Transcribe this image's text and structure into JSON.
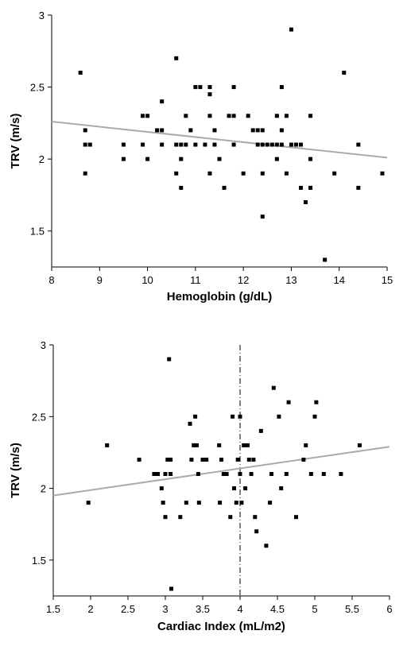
{
  "chart_data": [
    {
      "type": "scatter",
      "xlabel": "Hemoglobin (g/dL)",
      "ylabel": "TRV (m/s)",
      "xlim": [
        8,
        15
      ],
      "ylim": [
        1.25,
        3
      ],
      "xticks": [
        8,
        9,
        10,
        11,
        12,
        13,
        14,
        15
      ],
      "yticks": [
        1.5,
        2,
        2.5,
        3
      ],
      "marker_color": "#000000",
      "trend_line": {
        "color": "#aaaaaa",
        "points": [
          [
            8,
            2.26
          ],
          [
            15,
            2.01
          ]
        ]
      },
      "points": [
        [
          8.6,
          2.6
        ],
        [
          8.7,
          2.2
        ],
        [
          8.7,
          2.1
        ],
        [
          8.7,
          1.9
        ],
        [
          8.8,
          2.1
        ],
        [
          9.5,
          2.1
        ],
        [
          9.5,
          2.0
        ],
        [
          9.9,
          2.3
        ],
        [
          9.9,
          2.1
        ],
        [
          10.0,
          2.3
        ],
        [
          10.0,
          2.0
        ],
        [
          10.2,
          2.2
        ],
        [
          10.3,
          2.2
        ],
        [
          10.3,
          2.4
        ],
        [
          10.3,
          2.1
        ],
        [
          10.6,
          2.7
        ],
        [
          10.6,
          2.1
        ],
        [
          10.6,
          1.9
        ],
        [
          10.7,
          2.0
        ],
        [
          10.7,
          1.8
        ],
        [
          10.7,
          2.1
        ],
        [
          10.8,
          2.3
        ],
        [
          10.8,
          2.1
        ],
        [
          10.9,
          2.2
        ],
        [
          11.0,
          2.5
        ],
        [
          11.0,
          2.1
        ],
        [
          11.1,
          2.5
        ],
        [
          11.2,
          2.1
        ],
        [
          11.3,
          2.5
        ],
        [
          11.3,
          2.45
        ],
        [
          11.3,
          2.3
        ],
        [
          11.3,
          1.9
        ],
        [
          11.4,
          2.2
        ],
        [
          11.4,
          2.1
        ],
        [
          11.5,
          2.0
        ],
        [
          11.6,
          1.8
        ],
        [
          11.7,
          2.3
        ],
        [
          11.8,
          2.5
        ],
        [
          11.8,
          2.3
        ],
        [
          11.8,
          2.1
        ],
        [
          12.0,
          1.9
        ],
        [
          12.1,
          2.3
        ],
        [
          12.2,
          2.2
        ],
        [
          12.3,
          2.2
        ],
        [
          12.3,
          2.1
        ],
        [
          12.4,
          2.1
        ],
        [
          12.4,
          2.2
        ],
        [
          12.4,
          1.9
        ],
        [
          12.4,
          1.6
        ],
        [
          12.5,
          2.1
        ],
        [
          12.6,
          2.1
        ],
        [
          12.7,
          2.1
        ],
        [
          12.7,
          2.0
        ],
        [
          12.7,
          2.3
        ],
        [
          12.8,
          2.5
        ],
        [
          12.8,
          2.2
        ],
        [
          12.8,
          2.1
        ],
        [
          12.9,
          1.9
        ],
        [
          12.9,
          2.3
        ],
        [
          13.0,
          2.9
        ],
        [
          13.0,
          2.1
        ],
        [
          13.1,
          2.1
        ],
        [
          13.2,
          2.1
        ],
        [
          13.2,
          1.8
        ],
        [
          13.3,
          1.7
        ],
        [
          13.4,
          2.3
        ],
        [
          13.4,
          2.0
        ],
        [
          13.4,
          1.8
        ],
        [
          13.7,
          1.3
        ],
        [
          13.9,
          1.9
        ],
        [
          14.1,
          2.6
        ],
        [
          14.4,
          2.1
        ],
        [
          14.4,
          1.8
        ],
        [
          14.9,
          1.9
        ]
      ]
    },
    {
      "type": "scatter",
      "xlabel": "Cardiac Index (mL/m2)",
      "ylabel": "TRV (m/s)",
      "xlim": [
        1.5,
        6
      ],
      "ylim": [
        1.25,
        3
      ],
      "xticks": [
        1.5,
        2,
        2.5,
        3,
        3.5,
        4,
        4.5,
        5,
        5.5,
        6
      ],
      "yticks": [
        1.5,
        2,
        2.5,
        3
      ],
      "marker_color": "#000000",
      "trend_line": {
        "color": "#aaaaaa",
        "points": [
          [
            1.5,
            1.95
          ],
          [
            6,
            2.29
          ]
        ]
      },
      "reference_line": {
        "x": 4,
        "color": "#000000",
        "style": "dash-dot"
      },
      "points": [
        [
          1.97,
          1.9
        ],
        [
          2.22,
          2.3
        ],
        [
          2.65,
          2.2
        ],
        [
          2.85,
          2.1
        ],
        [
          2.9,
          2.1
        ],
        [
          2.95,
          2.0
        ],
        [
          2.97,
          1.9
        ],
        [
          3.0,
          1.8
        ],
        [
          3.0,
          2.1
        ],
        [
          3.03,
          2.2
        ],
        [
          3.05,
          2.9
        ],
        [
          3.07,
          2.2
        ],
        [
          3.07,
          2.1
        ],
        [
          3.08,
          1.3
        ],
        [
          3.2,
          1.8
        ],
        [
          3.28,
          1.9
        ],
        [
          3.33,
          2.45
        ],
        [
          3.35,
          2.2
        ],
        [
          3.38,
          2.3
        ],
        [
          3.4,
          2.5
        ],
        [
          3.42,
          2.3
        ],
        [
          3.44,
          2.1
        ],
        [
          3.45,
          1.9
        ],
        [
          3.5,
          2.2
        ],
        [
          3.55,
          2.2
        ],
        [
          3.72,
          2.3
        ],
        [
          3.73,
          1.9
        ],
        [
          3.75,
          2.2
        ],
        [
          3.78,
          2.1
        ],
        [
          3.82,
          2.1
        ],
        [
          3.87,
          1.8
        ],
        [
          3.9,
          2.5
        ],
        [
          3.92,
          2.0
        ],
        [
          3.95,
          1.9
        ],
        [
          3.97,
          2.2
        ],
        [
          4.0,
          2.1
        ],
        [
          4.0,
          2.5
        ],
        [
          4.02,
          1.9
        ],
        [
          4.05,
          2.3
        ],
        [
          4.07,
          2.0
        ],
        [
          4.1,
          2.3
        ],
        [
          4.12,
          2.2
        ],
        [
          4.15,
          2.1
        ],
        [
          4.18,
          2.2
        ],
        [
          4.2,
          1.8
        ],
        [
          4.22,
          1.7
        ],
        [
          4.28,
          2.4
        ],
        [
          4.35,
          1.6
        ],
        [
          4.4,
          1.9
        ],
        [
          4.42,
          2.1
        ],
        [
          4.45,
          2.7
        ],
        [
          4.52,
          2.5
        ],
        [
          4.55,
          2.0
        ],
        [
          4.62,
          2.1
        ],
        [
          4.65,
          2.6
        ],
        [
          4.75,
          1.8
        ],
        [
          4.85,
          2.2
        ],
        [
          4.88,
          2.3
        ],
        [
          4.95,
          2.1
        ],
        [
          5.0,
          2.5
        ],
        [
          5.02,
          2.6
        ],
        [
          5.12,
          2.1
        ],
        [
          5.35,
          2.1
        ],
        [
          5.6,
          2.3
        ]
      ]
    }
  ]
}
